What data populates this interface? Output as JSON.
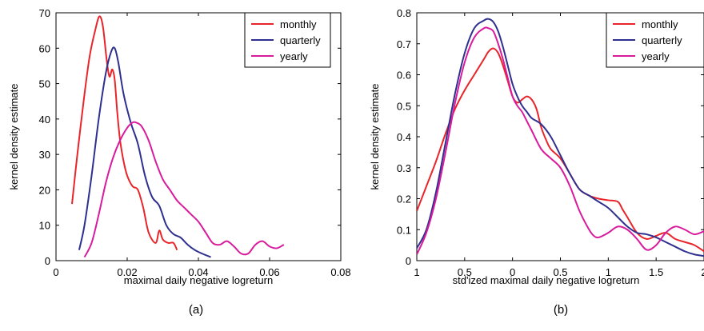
{
  "chart_data": [
    {
      "type": "line",
      "panel_label": "(a)",
      "xlabel": "maximal daily negative logreturn",
      "ylabel": "kernel density estimate",
      "xlim": [
        0,
        0.08
      ],
      "ylim": [
        0,
        70
      ],
      "xticks": [
        0,
        0.02,
        0.04,
        0.06,
        0.08
      ],
      "xtick_labels": [
        "0",
        "0.02",
        "0.04",
        "0.06",
        "0.08"
      ],
      "yticks": [
        0,
        10,
        20,
        30,
        40,
        50,
        60,
        70
      ],
      "ytick_labels": [
        "0",
        "10",
        "20",
        "30",
        "40",
        "50",
        "60",
        "70"
      ],
      "legend_position": "top-right",
      "series": [
        {
          "name": "monthly",
          "color": "#e8252a",
          "x": [
            0.0045,
            0.006,
            0.008,
            0.0095,
            0.011,
            0.0122,
            0.0132,
            0.0142,
            0.015,
            0.0158,
            0.0165,
            0.0172,
            0.018,
            0.019,
            0.02,
            0.0215,
            0.023,
            0.0245,
            0.026,
            0.028,
            0.029,
            0.03,
            0.0315,
            0.033,
            0.034
          ],
          "y": [
            16,
            30,
            47,
            58,
            65,
            69,
            66,
            57,
            52,
            54,
            51,
            42,
            34,
            28,
            24,
            21,
            20,
            15,
            8,
            5,
            8.5,
            6,
            5,
            5,
            3
          ]
        },
        {
          "name": "quarterly",
          "color": "#2e2f8e",
          "x": [
            0.0065,
            0.008,
            0.01,
            0.012,
            0.014,
            0.0155,
            0.0165,
            0.0175,
            0.019,
            0.021,
            0.023,
            0.025,
            0.027,
            0.029,
            0.031,
            0.033,
            0.035,
            0.037,
            0.039,
            0.041,
            0.0435
          ],
          "y": [
            3,
            10,
            24,
            40,
            53,
            59,
            60,
            56,
            47,
            39,
            33,
            24,
            18,
            15.5,
            10,
            7.5,
            6.5,
            4.5,
            3,
            2,
            1
          ]
        },
        {
          "name": "yearly",
          "color": "#d81b9c",
          "x": [
            0.008,
            0.01,
            0.012,
            0.014,
            0.016,
            0.018,
            0.02,
            0.0215,
            0.0225,
            0.024,
            0.026,
            0.028,
            0.03,
            0.032,
            0.034,
            0.036,
            0.038,
            0.04,
            0.042,
            0.044,
            0.046,
            0.048,
            0.05,
            0.052,
            0.054,
            0.056,
            0.058,
            0.06,
            0.062,
            0.064
          ],
          "y": [
            1,
            5,
            13,
            22,
            29,
            34,
            37.5,
            39,
            39,
            38,
            34,
            28,
            23,
            20,
            17,
            15,
            13,
            11,
            8,
            5,
            4.5,
            5.5,
            4,
            2,
            2,
            4.5,
            5.5,
            4,
            3.5,
            4.5
          ]
        }
      ]
    },
    {
      "type": "line",
      "panel_label": "(b)",
      "xlabel": "std'ized maximal daily negative logreturn",
      "ylabel": "kernel density estimate",
      "xlim": [
        -1,
        2
      ],
      "ylim": [
        0,
        0.8
      ],
      "xticks": [
        -1,
        -0.5,
        0,
        0.5,
        1,
        1.5,
        2
      ],
      "xtick_labels": [
        "1",
        "0.5",
        "0",
        "0.5",
        "1",
        "1.5",
        "2"
      ],
      "yticks": [
        0,
        0.1,
        0.2,
        0.3,
        0.4,
        0.5,
        0.6,
        0.7,
        0.8
      ],
      "ytick_labels": [
        "0",
        "0.1",
        "0.2",
        "0.3",
        "0.4",
        "0.5",
        "0.6",
        "0.7",
        "0.8"
      ],
      "legend_position": "top-right",
      "series": [
        {
          "name": "monthly",
          "color": "#e8252a",
          "x": [
            -1,
            -0.9,
            -0.8,
            -0.7,
            -0.6,
            -0.5,
            -0.4,
            -0.3,
            -0.25,
            -0.2,
            -0.15,
            -0.1,
            -0.05,
            0,
            0.05,
            0.1,
            0.15,
            0.2,
            0.25,
            0.3,
            0.35,
            0.4,
            0.5,
            0.6,
            0.7,
            0.8,
            0.9,
            1.0,
            1.1,
            1.15,
            1.2,
            1.3,
            1.4,
            1.5,
            1.6,
            1.7,
            1.8,
            1.9,
            2.0
          ],
          "y": [
            0.16,
            0.24,
            0.32,
            0.41,
            0.49,
            0.55,
            0.6,
            0.65,
            0.675,
            0.685,
            0.67,
            0.63,
            0.58,
            0.53,
            0.51,
            0.52,
            0.53,
            0.52,
            0.49,
            0.43,
            0.39,
            0.36,
            0.33,
            0.28,
            0.23,
            0.21,
            0.2,
            0.195,
            0.19,
            0.165,
            0.14,
            0.09,
            0.07,
            0.08,
            0.09,
            0.07,
            0.06,
            0.05,
            0.03
          ]
        },
        {
          "name": "quarterly",
          "color": "#2e2f8e",
          "x": [
            -1,
            -0.9,
            -0.8,
            -0.7,
            -0.6,
            -0.5,
            -0.4,
            -0.3,
            -0.25,
            -0.2,
            -0.15,
            -0.1,
            -0.05,
            0,
            0.05,
            0.1,
            0.15,
            0.2,
            0.3,
            0.4,
            0.5,
            0.6,
            0.7,
            0.8,
            0.9,
            1.0,
            1.1,
            1.2,
            1.3,
            1.4,
            1.5,
            1.6,
            1.7,
            1.8,
            1.9,
            2.0
          ],
          "y": [
            0.04,
            0.1,
            0.22,
            0.38,
            0.54,
            0.67,
            0.75,
            0.775,
            0.78,
            0.77,
            0.74,
            0.69,
            0.63,
            0.57,
            0.53,
            0.5,
            0.48,
            0.46,
            0.44,
            0.4,
            0.34,
            0.28,
            0.23,
            0.21,
            0.19,
            0.17,
            0.14,
            0.11,
            0.09,
            0.085,
            0.075,
            0.06,
            0.045,
            0.03,
            0.02,
            0.015
          ]
        },
        {
          "name": "yearly",
          "color": "#d81b9c",
          "x": [
            -1,
            -0.9,
            -0.8,
            -0.7,
            -0.6,
            -0.5,
            -0.4,
            -0.3,
            -0.25,
            -0.2,
            -0.15,
            -0.1,
            -0.05,
            0,
            0.05,
            0.1,
            0.15,
            0.2,
            0.3,
            0.4,
            0.5,
            0.6,
            0.7,
            0.8,
            0.85,
            0.9,
            1.0,
            1.1,
            1.2,
            1.3,
            1.4,
            1.5,
            1.6,
            1.7,
            1.8,
            1.9,
            2.0
          ],
          "y": [
            0.02,
            0.09,
            0.2,
            0.35,
            0.51,
            0.64,
            0.72,
            0.75,
            0.75,
            0.74,
            0.7,
            0.65,
            0.59,
            0.53,
            0.5,
            0.48,
            0.45,
            0.42,
            0.36,
            0.33,
            0.3,
            0.24,
            0.16,
            0.1,
            0.08,
            0.075,
            0.09,
            0.11,
            0.1,
            0.07,
            0.035,
            0.05,
            0.09,
            0.11,
            0.1,
            0.085,
            0.095
          ]
        }
      ]
    }
  ]
}
